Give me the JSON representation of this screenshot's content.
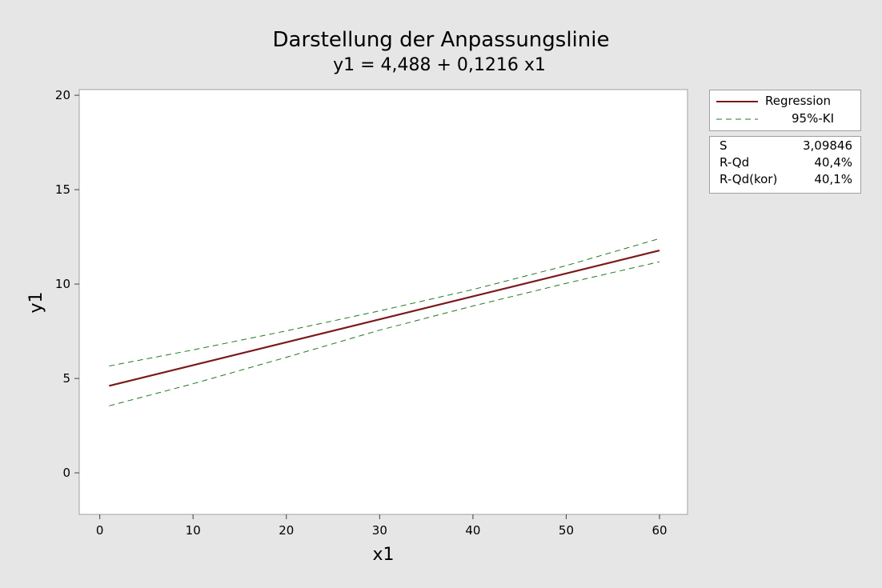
{
  "chart_data": {
    "type": "line",
    "title": "Darstellung der Anpassungslinie",
    "subtitle": "y1 = 4,488 + 0,1216 x1",
    "xlabel": "x1",
    "ylabel": "y1",
    "xlim": [
      -2.2,
      63.0
    ],
    "ylim": [
      -2.2,
      20.3
    ],
    "xticks": [
      0,
      10,
      20,
      30,
      40,
      50,
      60
    ],
    "yticks": [
      0,
      5,
      10,
      15,
      20
    ],
    "grid": false,
    "legend_position": "right",
    "series": [
      {
        "name": "Regression",
        "style": "solid",
        "color": "#7a1a1a",
        "x": [
          1,
          60
        ],
        "y": [
          4.61,
          11.78
        ]
      },
      {
        "name": "95%-KI",
        "style": "dashed",
        "color": "#1f7a1f",
        "x": [
          1,
          10,
          20,
          30,
          40,
          50,
          60
        ],
        "y": [
          5.66,
          6.51,
          7.52,
          8.58,
          9.71,
          10.98,
          12.41
        ]
      },
      {
        "name": "95%-KI",
        "style": "dashed",
        "color": "#1f7a1f",
        "x": [
          1,
          10,
          20,
          30,
          40,
          50,
          60
        ],
        "y": [
          3.55,
          4.72,
          6.12,
          7.56,
          8.84,
          10.04,
          11.18
        ]
      }
    ]
  },
  "legend": {
    "items": [
      {
        "label": "Regression"
      },
      {
        "label": "95%-KI"
      }
    ]
  },
  "stats": {
    "rows": [
      {
        "key": "S",
        "value": "3,09846"
      },
      {
        "key": "R-Qd",
        "value": "40,4%"
      },
      {
        "key": "R-Qd(kor)",
        "value": "40,1%"
      }
    ]
  }
}
